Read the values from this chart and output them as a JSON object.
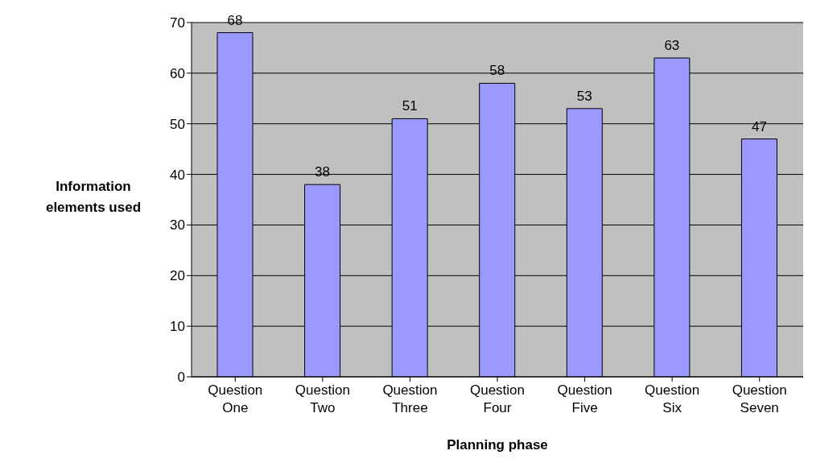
{
  "chart_data": {
    "type": "bar",
    "xlabel": "Planning phase",
    "ylabel": "Information elements used",
    "categories": [
      "Question One",
      "Question Two",
      "Question Three",
      "Question Four",
      "Question Five",
      "Question Six",
      "Question Seven"
    ],
    "values": [
      68,
      38,
      51,
      58,
      53,
      63,
      47
    ],
    "color": "#9999ff",
    "ylim": [
      0,
      70
    ],
    "yticks": [
      0,
      10,
      20,
      30,
      40,
      50,
      60,
      70
    ],
    "grid": "y",
    "data_labels": true
  }
}
